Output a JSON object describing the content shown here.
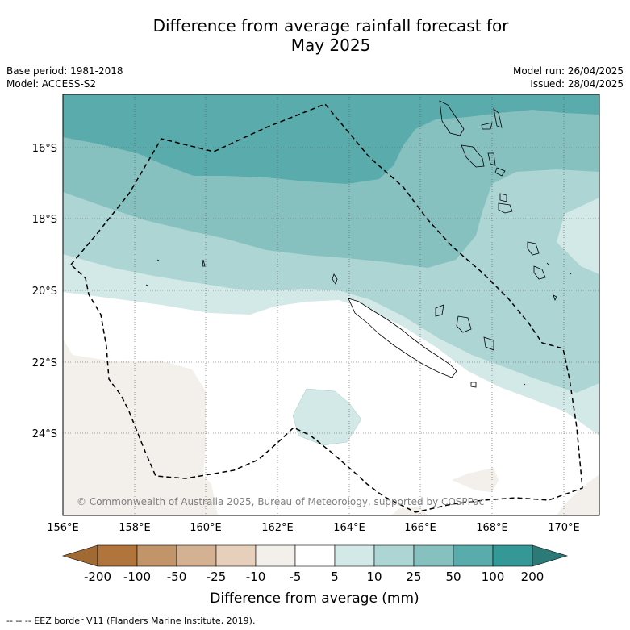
{
  "title_line1": "Difference from average rainfall forecast for",
  "title_line2": "May 2025",
  "base_period": "Base period: 1981-2018",
  "model": "Model: ACCESS-S2",
  "model_run": "Model run: 26/04/2025",
  "issued": "Issued: 28/04/2025",
  "copyright": "© Commonwealth of Australia 2025, Bureau of Meteorology, supported by COSPPac",
  "lat_labels": [
    "16°S",
    "18°S",
    "20°S",
    "22°S",
    "24°S"
  ],
  "lon_labels": [
    "156°E",
    "158°E",
    "160°E",
    "162°E",
    "164°E",
    "166°E",
    "168°E",
    "170°E"
  ],
  "colorbar": {
    "title": "Difference from average (mm)",
    "labels": [
      "-200",
      "-100",
      "-50",
      "-25",
      "-10",
      "-5",
      "5",
      "10",
      "25",
      "50",
      "100",
      "200"
    ],
    "colors": [
      "#a26a33",
      "#af753d",
      "#c29469",
      "#d4b192",
      "#e6d0bb",
      "#f3efea",
      "#ffffff",
      "#d3e9e7",
      "#acd5d4",
      "#86c1c0",
      "#5aabab",
      "#339896",
      "#2b7a78"
    ]
  },
  "footnote": "-- -- -- EEZ border V11 (Flanders Marine Institute, 2019)."
}
